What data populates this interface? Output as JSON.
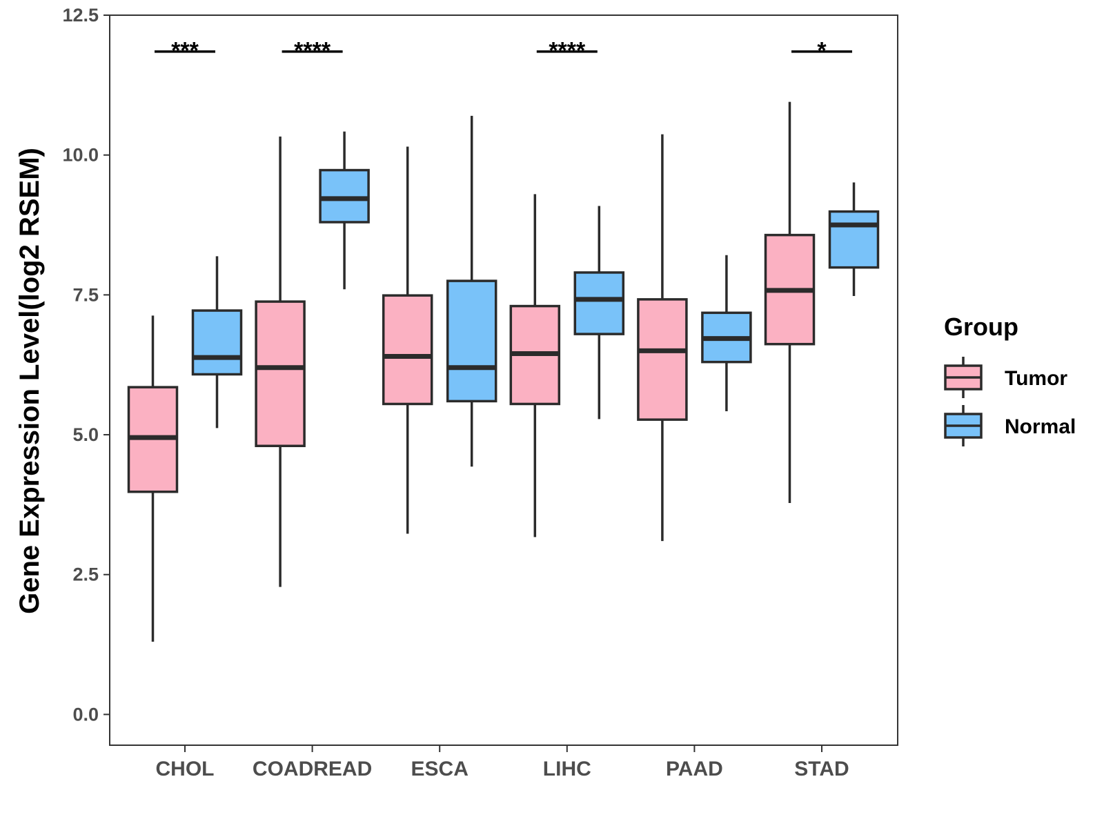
{
  "chart_data": {
    "type": "boxplot",
    "ylabel": "Gene Expression Level(log2 RSEM)",
    "xlabel": "",
    "ylim": [
      -0.55,
      12.5
    ],
    "yticks": [
      0.0,
      2.5,
      5.0,
      7.5,
      10.0,
      12.5
    ],
    "ytick_labels": [
      "0.0",
      "2.5",
      "5.0",
      "7.5",
      "10.0",
      "12.5"
    ],
    "grid": false,
    "categories": [
      "CHOL",
      "COADREAD",
      "ESCA",
      "LIHC",
      "PAAD",
      "STAD"
    ],
    "legend": {
      "title": "Group",
      "placement": "right",
      "entries": [
        {
          "name": "Tumor",
          "color": "#FBB1C2"
        },
        {
          "name": "Normal",
          "color": "#79C2F9"
        }
      ]
    },
    "series": [
      {
        "name": "Tumor",
        "color": "#FBB1C2",
        "boxes": [
          {
            "category": "CHOL",
            "whisker_low": 1.3,
            "q1": 3.98,
            "median": 4.95,
            "q3": 5.85,
            "whisker_high": 7.13
          },
          {
            "category": "COADREAD",
            "whisker_low": 2.28,
            "q1": 4.8,
            "median": 6.2,
            "q3": 7.38,
            "whisker_high": 10.33
          },
          {
            "category": "ESCA",
            "whisker_low": 3.23,
            "q1": 5.55,
            "median": 6.4,
            "q3": 7.49,
            "whisker_high": 10.15
          },
          {
            "category": "LIHC",
            "whisker_low": 3.17,
            "q1": 5.55,
            "median": 6.45,
            "q3": 7.3,
            "whisker_high": 9.3
          },
          {
            "category": "PAAD",
            "whisker_low": 3.1,
            "q1": 5.27,
            "median": 6.5,
            "q3": 7.42,
            "whisker_high": 10.37
          },
          {
            "category": "STAD",
            "whisker_low": 3.78,
            "q1": 6.62,
            "median": 7.58,
            "q3": 8.57,
            "whisker_high": 10.95
          }
        ]
      },
      {
        "name": "Normal",
        "color": "#79C2F9",
        "boxes": [
          {
            "category": "CHOL",
            "whisker_low": 5.12,
            "q1": 6.08,
            "median": 6.38,
            "q3": 7.22,
            "whisker_high": 8.19
          },
          {
            "category": "COADREAD",
            "whisker_low": 7.6,
            "q1": 8.8,
            "median": 9.22,
            "q3": 9.73,
            "whisker_high": 10.42
          },
          {
            "category": "ESCA",
            "whisker_low": 4.43,
            "q1": 5.6,
            "median": 6.2,
            "q3": 7.75,
            "whisker_high": 10.7
          },
          {
            "category": "LIHC",
            "whisker_low": 5.28,
            "q1": 6.8,
            "median": 7.42,
            "q3": 7.9,
            "whisker_high": 9.09
          },
          {
            "category": "PAAD",
            "whisker_low": 5.42,
            "q1": 6.3,
            "median": 6.72,
            "q3": 7.18,
            "whisker_high": 8.21
          },
          {
            "category": "STAD",
            "whisker_low": 7.48,
            "q1": 7.99,
            "median": 8.75,
            "q3": 8.99,
            "whisker_high": 9.51
          }
        ]
      }
    ],
    "annotations": [
      {
        "category": "CHOL",
        "label": "***",
        "y": 11.85
      },
      {
        "category": "COADREAD",
        "label": "****",
        "y": 11.85
      },
      {
        "category": "LIHC",
        "label": "****",
        "y": 11.85
      },
      {
        "category": "STAD",
        "label": "*",
        "y": 11.85
      }
    ]
  }
}
